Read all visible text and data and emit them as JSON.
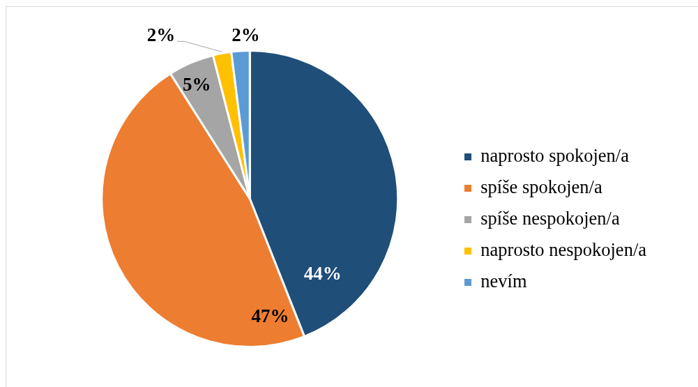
{
  "chart_data": {
    "type": "pie",
    "categories": [
      "naprosto spokojen/a",
      "spíše spokojen/a",
      "spíše nespokojen/a",
      "naprosto nespokojen/a",
      "nevím"
    ],
    "values": [
      44,
      47,
      5,
      2,
      2
    ],
    "colors": [
      "#1f4e79",
      "#ed7d31",
      "#a5a5a5",
      "#ffc000",
      "#5b9bd5"
    ],
    "value_labels": [
      "44%",
      "47%",
      "5%",
      "2%",
      "2%"
    ],
    "legend": "right"
  }
}
